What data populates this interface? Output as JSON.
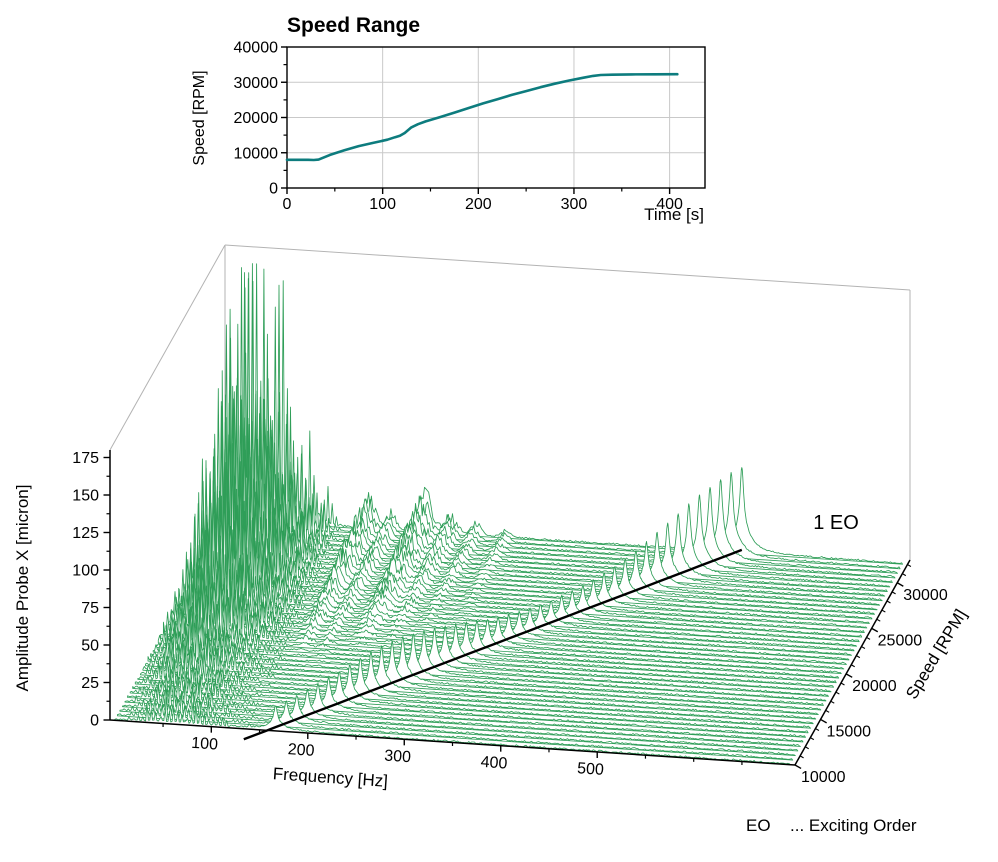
{
  "figure": {
    "colors": {
      "teal_line": "#0d7c7e",
      "waterfall_green": "#2f9e58",
      "eo_line": "#000000",
      "frame_gray": "#b3b3b3",
      "grid_gray": "#c9c9c9",
      "axis_black": "#000000",
      "background": "#ffffff"
    }
  },
  "chart_data": [
    {
      "type": "line",
      "title": "Speed Range",
      "xlabel": "Time [s]",
      "ylabel": "Speed [RPM]",
      "xlim": [
        0,
        437
      ],
      "ylim": [
        0,
        40000
      ],
      "xticks": [
        0,
        100,
        200,
        300,
        400
      ],
      "xminor": [
        50,
        150,
        250,
        350
      ],
      "yticks": [
        0,
        10000,
        20000,
        30000,
        40000
      ],
      "yminor": [
        5000,
        15000,
        25000,
        35000
      ],
      "grid": true,
      "legend_position": "none",
      "line_color": "#0d7c7e",
      "points": [
        [
          0,
          8000
        ],
        [
          22,
          8000
        ],
        [
          28,
          7950
        ],
        [
          33,
          8050
        ],
        [
          45,
          9400
        ],
        [
          60,
          10700
        ],
        [
          75,
          11900
        ],
        [
          90,
          12800
        ],
        [
          105,
          13700
        ],
        [
          113,
          14400
        ],
        [
          118,
          14800
        ],
        [
          123,
          15600
        ],
        [
          130,
          17200
        ],
        [
          137,
          18100
        ],
        [
          145,
          18900
        ],
        [
          160,
          20100
        ],
        [
          175,
          21400
        ],
        [
          190,
          22700
        ],
        [
          205,
          24000
        ],
        [
          220,
          25200
        ],
        [
          235,
          26400
        ],
        [
          250,
          27500
        ],
        [
          265,
          28600
        ],
        [
          280,
          29600
        ],
        [
          295,
          30500
        ],
        [
          310,
          31300
        ],
        [
          320,
          31800
        ],
        [
          328,
          32050
        ],
        [
          340,
          32150
        ],
        [
          360,
          32220
        ],
        [
          385,
          32250
        ],
        [
          408,
          32280
        ]
      ]
    },
    {
      "type": "waterfall3d",
      "xlabel": "Frequency [Hz]",
      "ylabel": "Amplitude Probe X [micron]",
      "zlabel": "Speed [RPM]",
      "annotation": "1 EO",
      "footnote_abbr": "EO",
      "footnote_text": "... Exciting Order",
      "freq_domain": [
        -5,
        705
      ],
      "freq_data_range": [
        0,
        700
      ],
      "freq_ticks": [
        100,
        200,
        300,
        400,
        500
      ],
      "freq_minor_step": 50,
      "amp_ticks": [
        0,
        25,
        50,
        75,
        100,
        125,
        150,
        175
      ],
      "amp_minor_step": 12.5,
      "amp_axis_max": 180,
      "speed_ticks": [
        10000,
        15000,
        20000,
        25000,
        30000
      ],
      "speed_minor_step": 1000,
      "speed_depth_domain": [
        10000,
        32500
      ],
      "rows": {
        "speed_min": 10000,
        "speed_max": 32000,
        "step": 500
      },
      "eo_order": 1,
      "line_color": "#2f9e58",
      "model": {
        "noise": {
          "base": 0.35,
          "rand": 1.0
        },
        "mountain": {
          "h_max": 150,
          "g0": 0.07,
          "exp": 2.3,
          "shift": 35,
          "comb_step": 4.6,
          "spike_floor": 0.1,
          "broad": {
            "f": 65,
            "w": 38,
            "g": 0.22
          },
          "sub": [
            {
              "f": 18,
              "w": 5,
              "g": 0.3
            },
            {
              "f": 30,
              "w": 6,
              "g": 0.6
            },
            {
              "f": 42,
              "w": 7,
              "g": 0.9
            },
            {
              "f": 55,
              "w": 8,
              "g": 1.0
            },
            {
              "f": 68,
              "w": 8,
              "g": 0.95
            },
            {
              "f": 81,
              "w": 8,
              "g": 0.8
            },
            {
              "f": 95,
              "w": 8,
              "g": 0.6
            },
            {
              "f": 110,
              "w": 7,
              "g": 0.42
            },
            {
              "f": 125,
              "w": 6,
              "g": 0.26
            },
            {
              "f": 140,
              "w": 5,
              "g": 0.14
            }
          ]
        },
        "ridges": [
          {
            "f": 148,
            "w": 6,
            "h": 26,
            "s0": 0.35,
            "sr": 0.5
          },
          {
            "f": 170,
            "w": 5,
            "h": 14,
            "s0": 0.3,
            "sr": 0.5
          },
          {
            "f": 205,
            "w": 8,
            "h": 30,
            "s0": 0.4,
            "sr": 0.5
          },
          {
            "f": 232,
            "w": 6,
            "h": 16,
            "s0": 0.4,
            "sr": 0.55
          },
          {
            "f": 258,
            "w": 5,
            "h": 10,
            "s0": 0.45,
            "sr": 0.5
          },
          {
            "f": 290,
            "w": 5,
            "h": 7,
            "s0": 0.5,
            "sr": 0.5
          }
        ],
        "eo": {
          "w": 2.2,
          "skirt_w": 11,
          "core_frac": 0.72,
          "skirt_frac": 0.3,
          "base": 14,
          "bump_c": 16000,
          "bump_s": 4000,
          "bump_h": 15,
          "res_c": 32300,
          "res_s": 5000,
          "res_h": 42
        }
      }
    }
  ]
}
